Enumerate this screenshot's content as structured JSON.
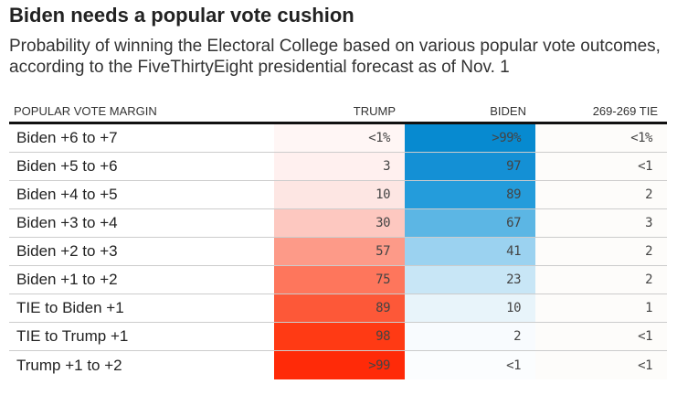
{
  "title": "Biden needs a popular vote cushion",
  "subtitle": "Probability of winning the Electoral College based on various popular vote outcomes, according to the FiveThirtyEight presidential forecast as of Nov. 1",
  "chart_data": {
    "type": "table",
    "columns": [
      "POPULAR VOTE MARGIN",
      "TRUMP",
      "BIDEN",
      "269-269 TIE"
    ],
    "rows": [
      {
        "margin": "Biden +6 to +7",
        "trump": "<1%",
        "biden": ">99%",
        "tie": "<1%",
        "trump_color": "#fff6f5",
        "biden_color": "#078ad0"
      },
      {
        "margin": "Biden +5 to +6",
        "trump": "3",
        "biden": "97",
        "tie": "<1",
        "trump_color": "#fff0ef",
        "biden_color": "#1490d5"
      },
      {
        "margin": "Biden +4 to +5",
        "trump": "10",
        "biden": "89",
        "tie": "2",
        "trump_color": "#fde6e3",
        "biden_color": "#249cdb"
      },
      {
        "margin": "Biden +3 to +4",
        "trump": "30",
        "biden": "67",
        "tie": "3",
        "trump_color": "#fdc8c0",
        "biden_color": "#5cb6e4"
      },
      {
        "margin": "Biden +2 to +3",
        "trump": "57",
        "biden": "41",
        "tie": "2",
        "trump_color": "#fd9a88",
        "biden_color": "#9bd2f0"
      },
      {
        "margin": "Biden +1 to +2",
        "trump": "75",
        "biden": "23",
        "tie": "2",
        "trump_color": "#fe765c",
        "biden_color": "#c8e6f6"
      },
      {
        "margin": "TIE to Biden +1",
        "trump": "89",
        "biden": "10",
        "tie": "1",
        "trump_color": "#fd5838",
        "biden_color": "#e8f4fa"
      },
      {
        "margin": "TIE to Trump +1",
        "trump": "98",
        "biden": "2",
        "tie": "<1",
        "trump_color": "#ff3a14",
        "biden_color": "#f8fbfe"
      },
      {
        "margin": "Trump +1 to +2",
        "trump": ">99",
        "biden": "<1",
        "tie": "<1",
        "trump_color": "#ff2a08",
        "biden_color": "#fbfdfe"
      }
    ],
    "tie_color": "#fdfcfa"
  }
}
